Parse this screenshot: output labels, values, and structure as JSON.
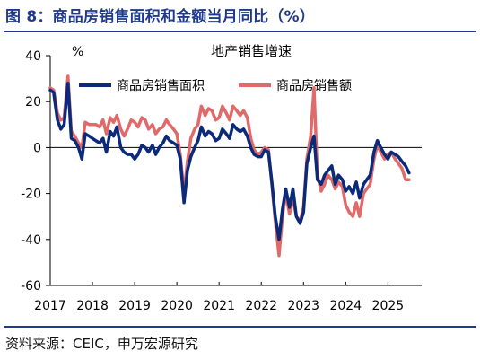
{
  "figure": {
    "title": "图 8：商品房销售面积和金额当月同比（%）",
    "source": "资料来源：CEIC，申万宏源研究"
  },
  "colors": {
    "title": "#1f3a8c",
    "series_area": "#0b2a7a",
    "series_amount": "#e06a6a",
    "axis": "#000000"
  },
  "chart_data": {
    "type": "line",
    "title": "地产销售增速",
    "ylabel": "%",
    "xlabel": "",
    "ylim": [
      -60,
      40
    ],
    "yticks": [
      40,
      20,
      0,
      -20,
      -40,
      -60
    ],
    "xlim": [
      2017,
      2025.8
    ],
    "xticks": [
      2017,
      2018,
      2019,
      2020,
      2021,
      2022,
      2023,
      2024,
      2025
    ],
    "xtick_labels": [
      "2017",
      "2018",
      "2019",
      "2020",
      "2021",
      "2022",
      "2023",
      "2024",
      "2025"
    ],
    "grid": false,
    "legend_position": "top",
    "series": [
      {
        "name": "商品房销售面积",
        "points": [
          [
            2017.0,
            25
          ],
          [
            2017.08,
            24
          ],
          [
            2017.17,
            12
          ],
          [
            2017.25,
            8
          ],
          [
            2017.33,
            10
          ],
          [
            2017.42,
            28
          ],
          [
            2017.5,
            4
          ],
          [
            2017.58,
            3
          ],
          [
            2017.67,
            0
          ],
          [
            2017.75,
            -5
          ],
          [
            2017.83,
            6
          ],
          [
            2017.92,
            5
          ],
          [
            2018.0,
            4
          ],
          [
            2018.08,
            3
          ],
          [
            2018.17,
            2
          ],
          [
            2018.25,
            4
          ],
          [
            2018.33,
            -2
          ],
          [
            2018.42,
            7
          ],
          [
            2018.5,
            5
          ],
          [
            2018.58,
            9
          ],
          [
            2018.67,
            0
          ],
          [
            2018.75,
            -2
          ],
          [
            2018.83,
            -3
          ],
          [
            2018.92,
            -3
          ],
          [
            2019.0,
            -5
          ],
          [
            2019.08,
            -3
          ],
          [
            2019.17,
            1
          ],
          [
            2019.25,
            0
          ],
          [
            2019.33,
            -2
          ],
          [
            2019.42,
            1
          ],
          [
            2019.5,
            -3
          ],
          [
            2019.58,
            0
          ],
          [
            2019.67,
            2
          ],
          [
            2019.75,
            5
          ],
          [
            2019.83,
            3
          ],
          [
            2019.92,
            2
          ],
          [
            2020.0,
            1
          ],
          [
            2020.08,
            -5
          ],
          [
            2020.17,
            -24
          ],
          [
            2020.25,
            -10
          ],
          [
            2020.33,
            -4
          ],
          [
            2020.42,
            0
          ],
          [
            2020.5,
            3
          ],
          [
            2020.58,
            9
          ],
          [
            2020.67,
            5
          ],
          [
            2020.75,
            7
          ],
          [
            2020.83,
            6
          ],
          [
            2020.92,
            3
          ],
          [
            2021.0,
            4
          ],
          [
            2021.08,
            8
          ],
          [
            2021.17,
            6
          ],
          [
            2021.25,
            4
          ],
          [
            2021.33,
            10
          ],
          [
            2021.42,
            8
          ],
          [
            2021.5,
            7
          ],
          [
            2021.58,
            8
          ],
          [
            2021.67,
            5
          ],
          [
            2021.75,
            0
          ],
          [
            2021.83,
            -3
          ],
          [
            2021.92,
            -4
          ],
          [
            2022.0,
            -4
          ],
          [
            2022.08,
            -1
          ],
          [
            2022.17,
            -2
          ],
          [
            2022.25,
            -15
          ],
          [
            2022.33,
            -30
          ],
          [
            2022.42,
            -40
          ],
          [
            2022.5,
            -27
          ],
          [
            2022.58,
            -18
          ],
          [
            2022.67,
            -26
          ],
          [
            2022.75,
            -18
          ],
          [
            2022.83,
            -30
          ],
          [
            2022.92,
            -33
          ],
          [
            2023.0,
            -28
          ],
          [
            2023.08,
            -7
          ],
          [
            2023.17,
            0
          ],
          [
            2023.25,
            5
          ],
          [
            2023.33,
            -14
          ],
          [
            2023.42,
            -16
          ],
          [
            2023.5,
            -12
          ],
          [
            2023.58,
            -10
          ],
          [
            2023.67,
            -8
          ],
          [
            2023.75,
            -16
          ],
          [
            2023.83,
            -12
          ],
          [
            2023.92,
            -14
          ],
          [
            2024.0,
            -19
          ],
          [
            2024.08,
            -17
          ],
          [
            2024.17,
            -20
          ],
          [
            2024.25,
            -15
          ],
          [
            2024.33,
            -22
          ],
          [
            2024.42,
            -16
          ],
          [
            2024.5,
            -14
          ],
          [
            2024.58,
            -12
          ],
          [
            2024.67,
            -2
          ],
          [
            2024.75,
            3
          ],
          [
            2024.83,
            0
          ],
          [
            2024.92,
            -3
          ],
          [
            2025.0,
            -5
          ],
          [
            2025.08,
            -2
          ],
          [
            2025.17,
            -3
          ],
          [
            2025.25,
            -4
          ],
          [
            2025.33,
            -6
          ],
          [
            2025.42,
            -8
          ],
          [
            2025.5,
            -11
          ]
        ]
      },
      {
        "name": "商品房销售额",
        "points": [
          [
            2017.0,
            26
          ],
          [
            2017.08,
            25
          ],
          [
            2017.17,
            15
          ],
          [
            2017.25,
            12
          ],
          [
            2017.33,
            13
          ],
          [
            2017.42,
            31
          ],
          [
            2017.5,
            7
          ],
          [
            2017.58,
            5
          ],
          [
            2017.67,
            2
          ],
          [
            2017.75,
            0
          ],
          [
            2017.83,
            11
          ],
          [
            2017.92,
            10
          ],
          [
            2018.0,
            10
          ],
          [
            2018.08,
            10
          ],
          [
            2018.17,
            9
          ],
          [
            2018.25,
            12
          ],
          [
            2018.33,
            6
          ],
          [
            2018.42,
            13
          ],
          [
            2018.5,
            11
          ],
          [
            2018.58,
            14
          ],
          [
            2018.67,
            8
          ],
          [
            2018.75,
            5
          ],
          [
            2018.83,
            8
          ],
          [
            2018.92,
            12
          ],
          [
            2019.0,
            11
          ],
          [
            2019.08,
            9
          ],
          [
            2019.17,
            13
          ],
          [
            2019.25,
            12
          ],
          [
            2019.33,
            8
          ],
          [
            2019.42,
            10
          ],
          [
            2019.5,
            6
          ],
          [
            2019.58,
            8
          ],
          [
            2019.67,
            9
          ],
          [
            2019.75,
            12
          ],
          [
            2019.83,
            10
          ],
          [
            2019.92,
            8
          ],
          [
            2020.0,
            6
          ],
          [
            2020.08,
            -3
          ],
          [
            2020.17,
            -20
          ],
          [
            2020.25,
            -6
          ],
          [
            2020.33,
            4
          ],
          [
            2020.42,
            8
          ],
          [
            2020.5,
            10
          ],
          [
            2020.58,
            18
          ],
          [
            2020.67,
            14
          ],
          [
            2020.75,
            17
          ],
          [
            2020.83,
            16
          ],
          [
            2020.92,
            12
          ],
          [
            2021.0,
            13
          ],
          [
            2021.08,
            18
          ],
          [
            2021.17,
            15
          ],
          [
            2021.25,
            12
          ],
          [
            2021.33,
            18
          ],
          [
            2021.42,
            16
          ],
          [
            2021.5,
            14
          ],
          [
            2021.58,
            16
          ],
          [
            2021.67,
            13
          ],
          [
            2021.75,
            4
          ],
          [
            2021.83,
            -1
          ],
          [
            2021.92,
            -3
          ],
          [
            2022.0,
            -2
          ],
          [
            2022.08,
            0
          ],
          [
            2022.17,
            -1
          ],
          [
            2022.25,
            -16
          ],
          [
            2022.33,
            -32
          ],
          [
            2022.42,
            -47
          ],
          [
            2022.5,
            -30
          ],
          [
            2022.58,
            -20
          ],
          [
            2022.67,
            -29
          ],
          [
            2022.75,
            -22
          ],
          [
            2022.83,
            -30
          ],
          [
            2022.92,
            -32
          ],
          [
            2023.0,
            -26
          ],
          [
            2023.08,
            -5
          ],
          [
            2023.17,
            5
          ],
          [
            2023.25,
            26
          ],
          [
            2023.33,
            -12
          ],
          [
            2023.42,
            -19
          ],
          [
            2023.5,
            -16
          ],
          [
            2023.58,
            -12
          ],
          [
            2023.67,
            -14
          ],
          [
            2023.75,
            -18
          ],
          [
            2023.83,
            -15
          ],
          [
            2023.92,
            -17
          ],
          [
            2024.0,
            -25
          ],
          [
            2024.08,
            -28
          ],
          [
            2024.17,
            -30
          ],
          [
            2024.25,
            -24
          ],
          [
            2024.33,
            -30
          ],
          [
            2024.42,
            -20
          ],
          [
            2024.5,
            -18
          ],
          [
            2024.58,
            -16
          ],
          [
            2024.67,
            -5
          ],
          [
            2024.75,
            1
          ],
          [
            2024.83,
            -2
          ],
          [
            2024.92,
            -5
          ],
          [
            2025.0,
            -3
          ],
          [
            2025.08,
            -2
          ],
          [
            2025.17,
            -5
          ],
          [
            2025.25,
            -7
          ],
          [
            2025.33,
            -9
          ],
          [
            2025.42,
            -14
          ],
          [
            2025.5,
            -14
          ]
        ]
      }
    ]
  }
}
